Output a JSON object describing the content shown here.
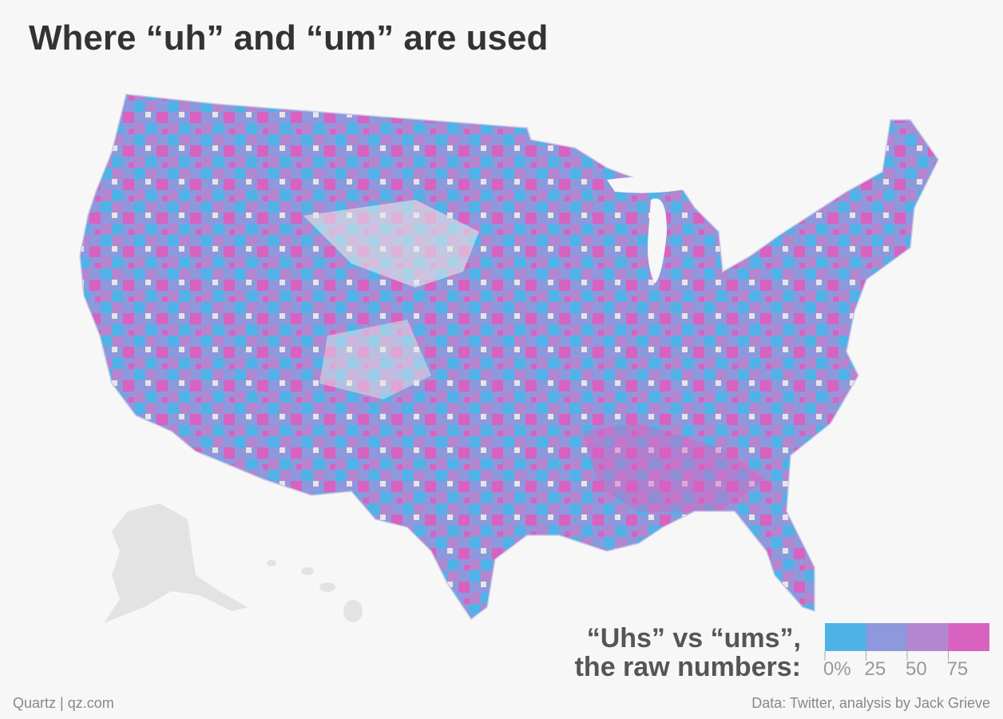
{
  "title": "Where “uh” and “um” are used",
  "legend": {
    "title": [
      "“Uhs” vs “ums”,",
      "the raw numbers:"
    ],
    "colors": [
      "#4fb3e8",
      "#8e98dc",
      "#b486d0",
      "#d862c0"
    ],
    "ticks": [
      {
        "value": 0,
        "label": "0%"
      },
      25,
      50,
      75
    ]
  },
  "footer": {
    "source_left": "Quartz | qz.com",
    "source_right": "Data: Twitter, analysis by Jack Grieve"
  }
}
